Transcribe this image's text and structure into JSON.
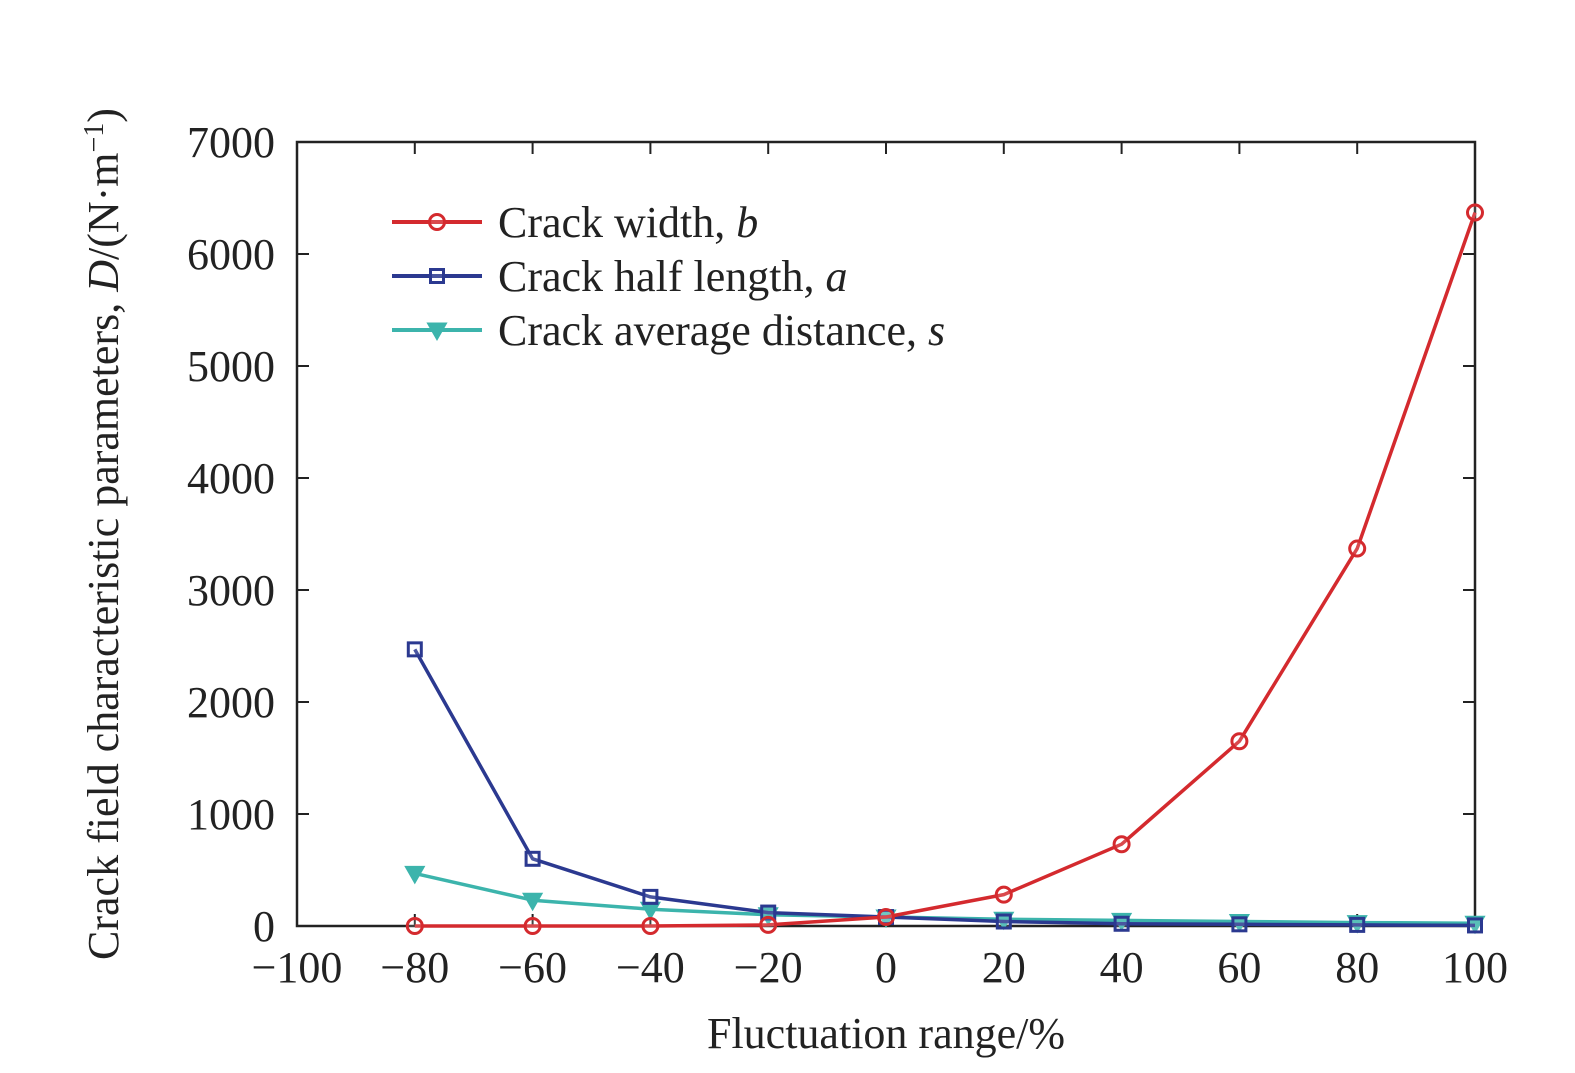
{
  "chart_data": {
    "type": "line",
    "xlabel": "Fluctuation range/%",
    "ylabel_prefix": "Crack field characteristic parameters, ",
    "ylabel_var": "D",
    "ylabel_suffix": "/(N·m",
    "ylabel_sup": "−1",
    "ylabel_close": ")",
    "xlim": [
      -100,
      100
    ],
    "ylim": [
      0,
      7000
    ],
    "x_ticks": [
      -100,
      -80,
      -60,
      -40,
      -20,
      0,
      20,
      40,
      60,
      80,
      100
    ],
    "x_tick_labels": [
      "−100",
      "−80",
      "−60",
      "−40",
      "−20",
      "0",
      "20",
      "40",
      "60",
      "80",
      "100"
    ],
    "y_ticks": [
      0,
      1000,
      2000,
      3000,
      4000,
      5000,
      6000,
      7000
    ],
    "y_tick_labels": [
      "0",
      "1000",
      "2000",
      "3000",
      "4000",
      "5000",
      "6000",
      "7000"
    ],
    "grid": false,
    "legend_position": "top-left",
    "x": [
      -80,
      -60,
      -40,
      -20,
      0,
      20,
      40,
      60,
      80,
      100
    ],
    "series": [
      {
        "name": "Crack width, ",
        "symbol": "b",
        "marker": "circle",
        "color": "#d42a2e",
        "values": [
          0,
          0,
          0,
          10,
          80,
          280,
          730,
          1650,
          3370,
          6370
        ]
      },
      {
        "name": "Crack half length, ",
        "symbol": "a",
        "marker": "square",
        "color": "#2b3990",
        "values": [
          2470,
          600,
          260,
          120,
          80,
          40,
          20,
          15,
          10,
          5
        ]
      },
      {
        "name": "Crack average distance, ",
        "symbol": "s",
        "marker": "triangle-down",
        "color": "#3cb4ac",
        "values": [
          470,
          230,
          150,
          100,
          80,
          60,
          50,
          40,
          30,
          25
        ]
      }
    ]
  }
}
